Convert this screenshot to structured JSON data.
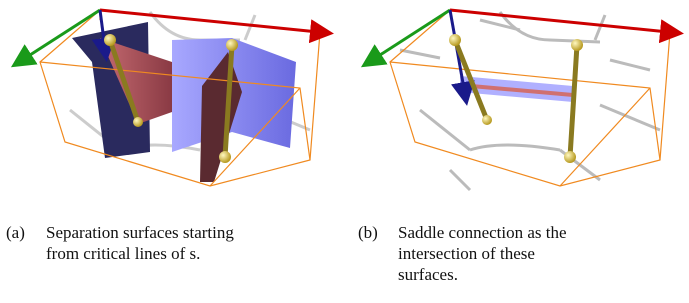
{
  "figures": [
    {
      "label": "(a)",
      "caption_lines": [
        "Separation surfaces starting",
        "from critical lines of s."
      ]
    },
    {
      "label": "(b)",
      "caption_lines": [
        "Saddle connection as the",
        "intersection of these",
        "surfaces."
      ]
    }
  ]
}
